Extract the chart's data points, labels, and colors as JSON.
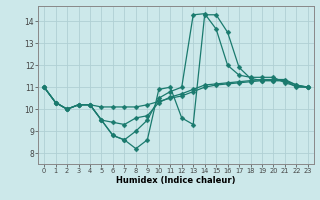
{
  "xlabel": "Humidex (Indice chaleur)",
  "bg_color": "#cce8ea",
  "line_color": "#1a7a6e",
  "grid_color": "#b0d0d4",
  "xlim": [
    -0.5,
    23.5
  ],
  "ylim": [
    7.5,
    14.7
  ],
  "yticks": [
    8,
    9,
    10,
    11,
    12,
    13,
    14
  ],
  "xticks": [
    0,
    1,
    2,
    3,
    4,
    5,
    6,
    7,
    8,
    9,
    10,
    11,
    12,
    13,
    14,
    15,
    16,
    17,
    18,
    19,
    20,
    21,
    22,
    23
  ],
  "lines": [
    [
      11.0,
      10.3,
      10.0,
      10.2,
      10.2,
      10.1,
      10.1,
      10.1,
      10.1,
      10.2,
      10.35,
      10.5,
      10.6,
      10.8,
      11.0,
      11.1,
      11.15,
      11.2,
      11.25,
      11.3,
      11.3,
      11.3,
      11.1,
      11.0
    ],
    [
      11.0,
      10.3,
      10.0,
      10.2,
      10.2,
      9.5,
      9.4,
      9.3,
      9.6,
      9.7,
      10.3,
      10.55,
      10.7,
      10.9,
      11.1,
      11.15,
      11.2,
      11.25,
      11.3,
      11.35,
      11.35,
      11.35,
      11.1,
      11.0
    ],
    [
      11.0,
      10.3,
      10.0,
      10.2,
      10.2,
      9.5,
      8.8,
      8.6,
      9.0,
      9.5,
      10.5,
      10.8,
      11.0,
      14.3,
      14.35,
      13.65,
      12.0,
      11.55,
      11.45,
      11.45,
      11.45,
      11.2,
      11.05,
      11.0
    ],
    [
      11.0,
      10.3,
      10.0,
      10.2,
      10.2,
      9.5,
      8.8,
      8.6,
      8.2,
      8.6,
      10.9,
      11.0,
      9.6,
      9.3,
      14.3,
      14.3,
      13.5,
      11.9,
      11.4,
      11.3,
      11.3,
      11.3,
      11.0,
      11.0
    ]
  ],
  "marker": "D",
  "markersize": 2.5,
  "linewidth": 0.9
}
